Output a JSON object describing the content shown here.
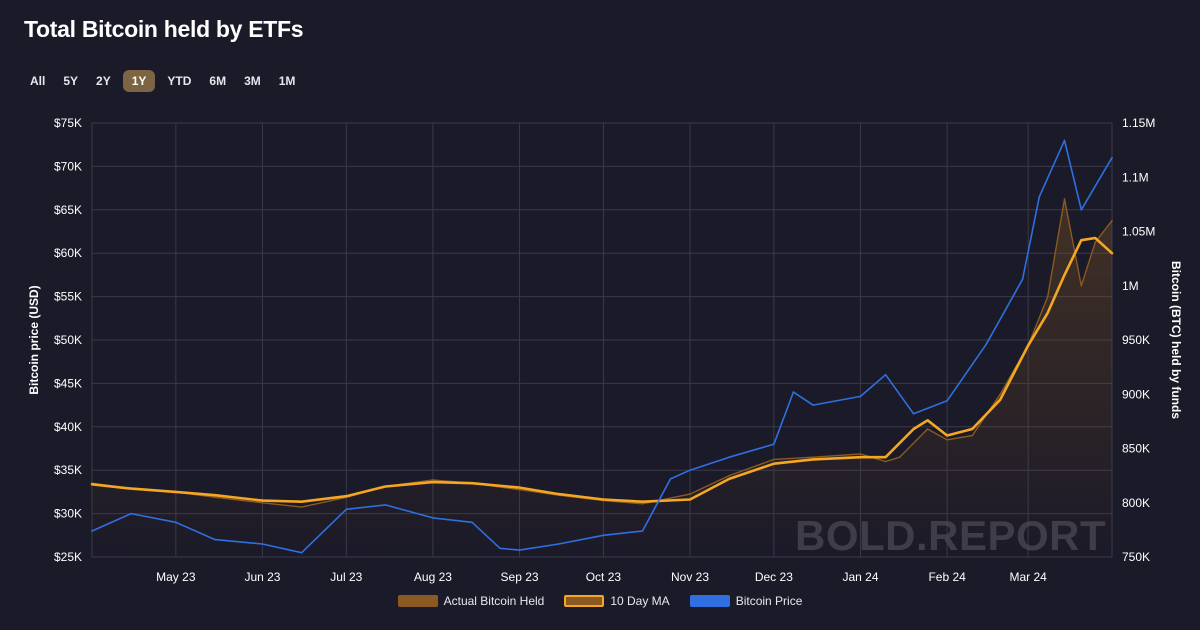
{
  "header": {
    "title": "Total Bitcoin held by ETFs"
  },
  "ranges": {
    "items": [
      "All",
      "5Y",
      "2Y",
      "1Y",
      "YTD",
      "6M",
      "3M",
      "1M"
    ],
    "selected": "1Y"
  },
  "watermark": "BOLD.REPORT",
  "colors": {
    "background": "#1b1a28",
    "grid": "#3a3948",
    "actual_held": "#8a5a22",
    "ma": "#f5a623",
    "price": "#2f6fe0",
    "active_range": "#7d6443"
  },
  "chart_data": {
    "type": "line",
    "title": "Total Bitcoin held by ETFs",
    "x_ticks": [
      "May 23",
      "Jun 23",
      "Jul 23",
      "Aug 23",
      "Sep 23",
      "Oct 23",
      "Nov 23",
      "Dec 23",
      "Jan 24",
      "Feb 24",
      "Mar 24"
    ],
    "x_range": [
      "2023-04-01",
      "2024-03-31"
    ],
    "left_axis": {
      "label": "Bitcoin price (USD)",
      "ylim": [
        25000,
        75000
      ],
      "tick_labels": [
        "$25K",
        "$30K",
        "$35K",
        "$40K",
        "$45K",
        "$50K",
        "$55K",
        "$60K",
        "$65K",
        "$70K",
        "$75K"
      ],
      "tick_values": [
        25000,
        30000,
        35000,
        40000,
        45000,
        50000,
        55000,
        60000,
        65000,
        70000,
        75000
      ]
    },
    "right_axis": {
      "label": "Bitcoin (BTC) held by funds",
      "ylim": [
        750000,
        1150000
      ],
      "tick_labels": [
        "750K",
        "800K",
        "850K",
        "900K",
        "950K",
        "1M",
        "1.05M",
        "1.1M",
        "1.15M"
      ],
      "tick_values": [
        750000,
        800000,
        850000,
        900000,
        950000,
        1000000,
        1050000,
        1100000,
        1150000
      ]
    },
    "grid": true,
    "legend_position": "bottom",
    "series": [
      {
        "name": "Actual Bitcoin Held",
        "axis": "right",
        "color": "#8a5a22",
        "x": [
          "2023-04-01",
          "2023-04-15",
          "2023-05-01",
          "2023-05-15",
          "2023-06-01",
          "2023-06-15",
          "2023-07-01",
          "2023-07-15",
          "2023-08-01",
          "2023-08-15",
          "2023-09-01",
          "2023-09-15",
          "2023-10-01",
          "2023-10-15",
          "2023-11-01",
          "2023-11-15",
          "2023-12-01",
          "2023-12-15",
          "2024-01-01",
          "2024-01-10",
          "2024-01-15",
          "2024-01-25",
          "2024-02-01",
          "2024-02-10",
          "2024-02-20",
          "2024-03-01",
          "2024-03-08",
          "2024-03-14",
          "2024-03-20",
          "2024-03-25",
          "2024-03-31"
        ],
        "values": [
          818000,
          813000,
          810000,
          805000,
          800000,
          796000,
          805000,
          815000,
          821000,
          818000,
          812000,
          807000,
          802000,
          799000,
          808000,
          825000,
          840000,
          842000,
          845000,
          838000,
          842000,
          868000,
          858000,
          862000,
          900000,
          945000,
          990000,
          1080000,
          1000000,
          1040000,
          1060000
        ]
      },
      {
        "name": "10 Day MA",
        "axis": "right",
        "color": "#f5a623",
        "x": [
          "2023-04-01",
          "2023-04-15",
          "2023-05-01",
          "2023-05-15",
          "2023-06-01",
          "2023-06-15",
          "2023-07-01",
          "2023-07-15",
          "2023-08-01",
          "2023-08-15",
          "2023-09-01",
          "2023-09-15",
          "2023-10-01",
          "2023-10-15",
          "2023-11-01",
          "2023-11-15",
          "2023-12-01",
          "2023-12-15",
          "2024-01-01",
          "2024-01-10",
          "2024-01-20",
          "2024-01-25",
          "2024-02-01",
          "2024-02-10",
          "2024-02-20",
          "2024-03-01",
          "2024-03-08",
          "2024-03-14",
          "2024-03-20",
          "2024-03-25",
          "2024-03-31"
        ],
        "values": [
          817000,
          813000,
          810000,
          807000,
          802000,
          801000,
          806000,
          815000,
          819000,
          818000,
          814000,
          808000,
          803000,
          801000,
          803000,
          822000,
          836000,
          840000,
          842000,
          842000,
          868000,
          876000,
          862000,
          868000,
          895000,
          945000,
          975000,
          1010000,
          1042000,
          1044000,
          1030000
        ]
      },
      {
        "name": "Bitcoin Price",
        "axis": "left",
        "color": "#2f6fe0",
        "x": [
          "2023-04-01",
          "2023-04-15",
          "2023-05-01",
          "2023-05-15",
          "2023-06-01",
          "2023-06-15",
          "2023-07-01",
          "2023-07-15",
          "2023-08-01",
          "2023-08-15",
          "2023-08-25",
          "2023-09-01",
          "2023-09-15",
          "2023-10-01",
          "2023-10-15",
          "2023-10-25",
          "2023-11-01",
          "2023-11-15",
          "2023-12-01",
          "2023-12-08",
          "2023-12-15",
          "2024-01-01",
          "2024-01-10",
          "2024-01-20",
          "2024-02-01",
          "2024-02-15",
          "2024-02-28",
          "2024-03-05",
          "2024-03-14",
          "2024-03-20",
          "2024-03-31"
        ],
        "values": [
          28000,
          30000,
          29000,
          27000,
          26500,
          25500,
          30500,
          31000,
          29500,
          29000,
          26000,
          25800,
          26500,
          27500,
          28000,
          34000,
          35000,
          36500,
          38000,
          44000,
          42500,
          43500,
          46000,
          41500,
          43000,
          49500,
          57000,
          66500,
          73000,
          65000,
          71000
        ]
      }
    ]
  },
  "legend": {
    "items": [
      "Actual Bitcoin Held",
      "10 Day MA",
      "Bitcoin Price"
    ]
  }
}
